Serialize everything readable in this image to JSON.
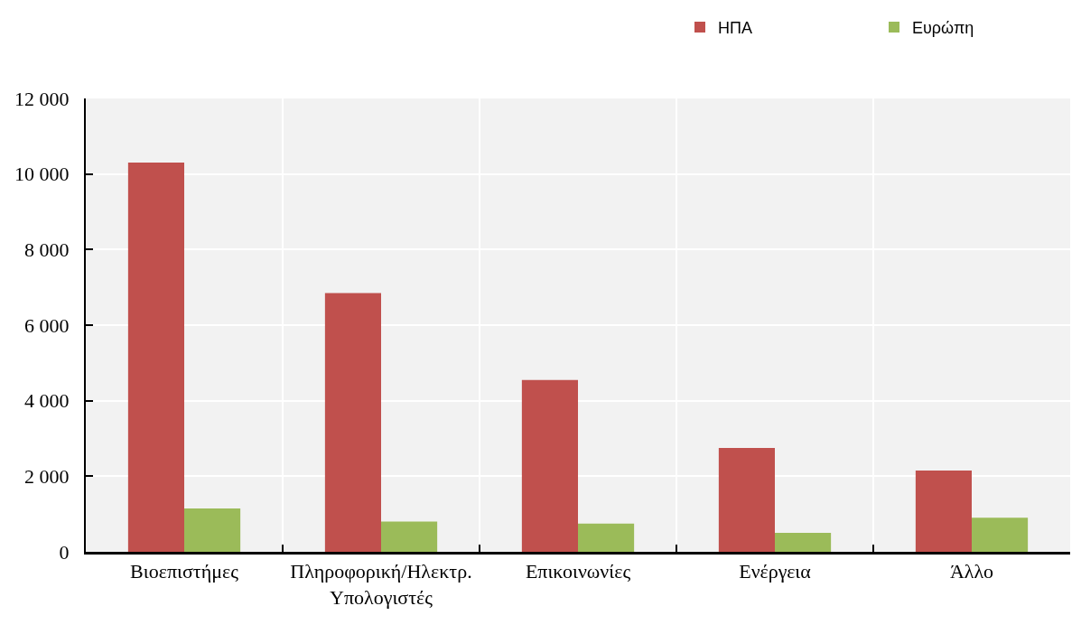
{
  "chart_data": {
    "type": "bar",
    "categories": [
      "Βιοεπιστήμες",
      "Πληροφορική/Ηλεκτρ. Υπολογιστές",
      "Επικοινωνίες",
      "Ενέργεια",
      "Άλλο"
    ],
    "series": [
      {
        "name": "ΗΠΑ",
        "color": "#c0504d",
        "values": [
          10300,
          6850,
          4550,
          2750,
          2150
        ]
      },
      {
        "name": "Ευρώπη",
        "color": "#9bbb59",
        "values": [
          1150,
          800,
          750,
          500,
          900
        ]
      }
    ],
    "ylim": [
      0,
      12000
    ],
    "yticks": [
      0,
      {
        "value": 2000,
        "label": "2 000"
      },
      {
        "value": 4000,
        "label": "4 000"
      },
      {
        "value": 6000,
        "label": "6 000"
      },
      {
        "value": 8000,
        "label": "8 000"
      },
      {
        "value": 10000,
        "label": "10 000"
      },
      {
        "value": 12000,
        "label": "12 000"
      }
    ],
    "grid": true,
    "legend": "top right"
  }
}
